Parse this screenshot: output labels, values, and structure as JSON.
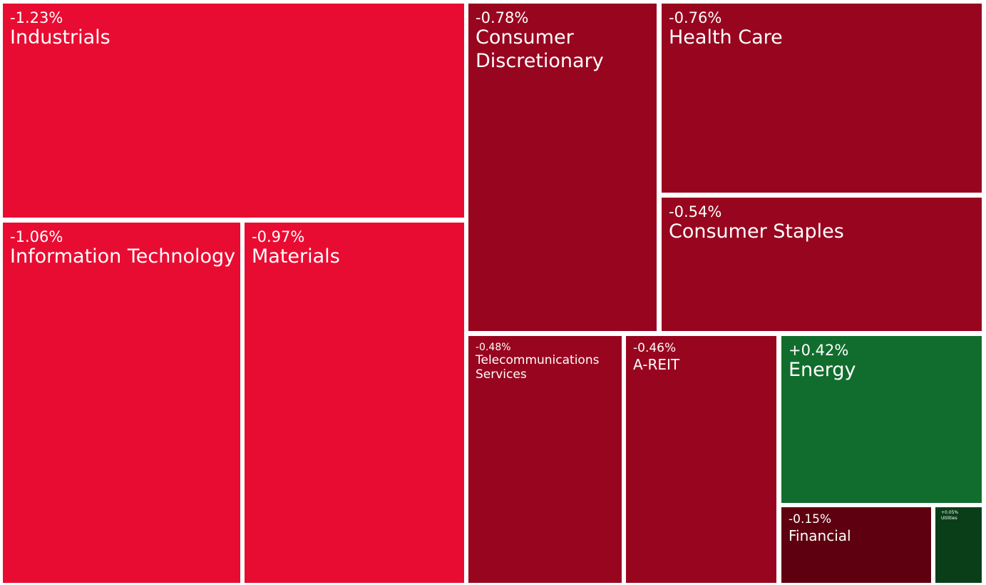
{
  "chart_data": {
    "type": "treemap",
    "colors": {
      "strong_negative": "#E90C32",
      "negative": "#98051F",
      "mild_negative": "#5E0010",
      "positive": "#116D2D",
      "mild_positive": "#0A3E19"
    },
    "sectors": [
      {
        "name": "Industrials",
        "change": -1.23,
        "label": "-1.23%",
        "color": "#E90C32"
      },
      {
        "name": "Information Technology",
        "change": -1.06,
        "label": "-1.06%",
        "color": "#E90C32"
      },
      {
        "name": "Materials",
        "change": -0.97,
        "label": "-0.97%",
        "color": "#E90C32"
      },
      {
        "name": "Consumer Discretionary",
        "change": -0.78,
        "label": "-0.78%",
        "color": "#98051F"
      },
      {
        "name": "Health Care",
        "change": -0.76,
        "label": "-0.76%",
        "color": "#98051F"
      },
      {
        "name": "Consumer Staples",
        "change": -0.54,
        "label": "-0.54%",
        "color": "#98051F"
      },
      {
        "name": "Telecommunications Services",
        "change": -0.48,
        "label": "-0.48%",
        "color": "#98051F"
      },
      {
        "name": "A-REIT",
        "change": -0.46,
        "label": "-0.46%",
        "color": "#98051F"
      },
      {
        "name": "Energy",
        "change": 0.42,
        "label": "+0.42%",
        "color": "#116D2D"
      },
      {
        "name": "Financial",
        "change": -0.15,
        "label": "-0.15%",
        "color": "#5E0010"
      },
      {
        "name": "Utilities",
        "change": 0.05,
        "label": "+0.05%",
        "color": "#0A3E19"
      }
    ]
  }
}
